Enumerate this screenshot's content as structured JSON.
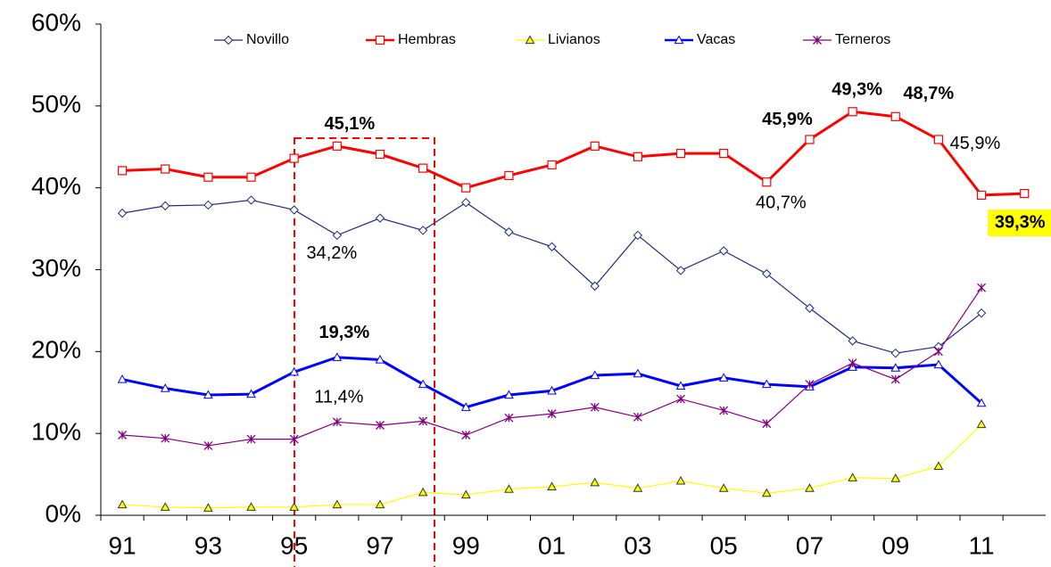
{
  "chart_data": {
    "type": "line",
    "categories": [
      "91",
      null,
      "93",
      null,
      "95",
      null,
      "97",
      null,
      "99",
      null,
      "01",
      null,
      "03",
      null,
      "05",
      null,
      "07",
      null,
      "09",
      null,
      "11",
      null
    ],
    "ylim": [
      0,
      60
    ],
    "yticks": [
      {
        "value": 0,
        "label": "0%"
      },
      {
        "value": 10,
        "label": "10%"
      },
      {
        "value": 20,
        "label": "20%"
      },
      {
        "value": 30,
        "label": "30%"
      },
      {
        "value": 40,
        "label": "40%"
      },
      {
        "value": 50,
        "label": "50%"
      },
      {
        "value": 60,
        "label": "60%"
      }
    ],
    "grid": false,
    "legend": "top",
    "series": [
      {
        "name": "Novillo",
        "color": "#1f2a7a",
        "marker": "diamond",
        "values": [
          36.9,
          37.8,
          37.9,
          38.5,
          37.3,
          34.2,
          36.3,
          34.8,
          38.2,
          34.6,
          32.8,
          28.0,
          34.2,
          29.9,
          32.3,
          29.5,
          25.3,
          21.3,
          19.8,
          20.6,
          24.7,
          null
        ],
        "value_labels": [
          null,
          null,
          null,
          null,
          null,
          "34,2%",
          null,
          null,
          null,
          null,
          null,
          null,
          null,
          null,
          null,
          null,
          null,
          null,
          null,
          null,
          null,
          null
        ]
      },
      {
        "name": "Hembras",
        "color": "#ff0000",
        "marker": "square",
        "values": [
          42.1,
          42.3,
          41.3,
          41.3,
          43.6,
          45.1,
          44.1,
          42.4,
          40.0,
          41.5,
          42.8,
          45.1,
          43.8,
          44.2,
          44.2,
          40.7,
          45.9,
          49.3,
          48.7,
          45.9,
          39.1,
          39.3
        ],
        "value_labels": [
          null,
          null,
          null,
          null,
          null,
          "45,1%",
          null,
          null,
          null,
          null,
          null,
          null,
          null,
          null,
          null,
          "40,7%",
          "45,9%",
          "49,3%",
          "48,7%",
          "45,9%",
          null,
          "39,3%"
        ]
      },
      {
        "name": "Livianos",
        "color": "#ffff00",
        "marker": "triangle",
        "values": [
          1.3,
          1.0,
          0.9,
          1.0,
          1.0,
          1.3,
          1.3,
          2.8,
          2.5,
          3.2,
          3.5,
          4.0,
          3.3,
          4.2,
          3.3,
          2.7,
          3.3,
          4.6,
          4.5,
          6.0,
          11.1,
          null
        ]
      },
      {
        "name": "Vacas",
        "color": "#0000ff",
        "marker": "triangle",
        "values": [
          16.6,
          15.5,
          14.7,
          14.8,
          17.5,
          19.3,
          19.0,
          16.0,
          13.2,
          14.7,
          15.2,
          17.1,
          17.3,
          15.8,
          16.8,
          16.0,
          15.7,
          18.1,
          18.0,
          18.4,
          13.7,
          null
        ],
        "value_labels": [
          null,
          null,
          null,
          null,
          null,
          "19,3%",
          null,
          null,
          null,
          null,
          null,
          null,
          null,
          null,
          null,
          null,
          null,
          null,
          null,
          null,
          null,
          null
        ]
      },
      {
        "name": "Terneros",
        "color": "#800080",
        "marker": "star",
        "values": [
          9.8,
          9.4,
          8.5,
          9.3,
          9.3,
          11.4,
          11.0,
          11.5,
          9.8,
          11.9,
          12.4,
          13.2,
          12.0,
          14.2,
          12.8,
          11.2,
          16.0,
          18.6,
          16.6,
          20.0,
          27.8,
          null
        ],
        "value_labels": [
          null,
          null,
          null,
          null,
          null,
          "11,4%",
          null,
          null,
          null,
          null,
          null,
          null,
          null,
          null,
          null,
          null,
          null,
          null,
          null,
          null,
          null,
          null
        ]
      }
    ]
  }
}
